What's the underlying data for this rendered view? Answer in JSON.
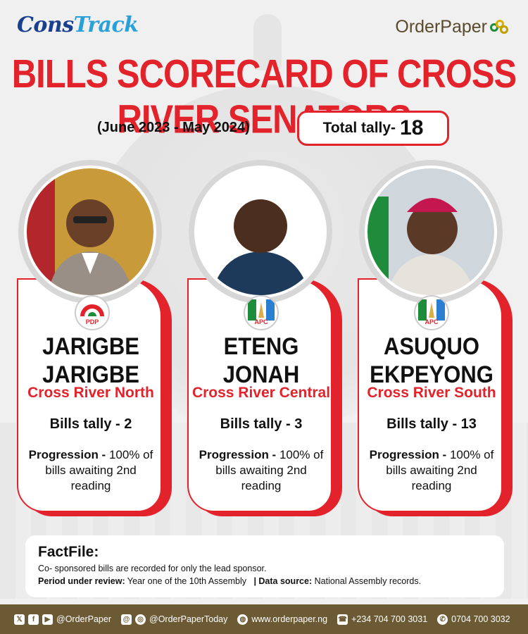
{
  "header": {
    "logo_left_a": "Cons",
    "logo_left_b": "Track",
    "logo_right": "OrderPaper",
    "title": "BILLS SCORECARD OF CROSS RIVER SENATORS",
    "period": "(June 2023 - May 2024)",
    "tally_label": "Total tally-",
    "tally_value": "18"
  },
  "colors": {
    "accent": "#e3232b",
    "brand_brown": "#6b5a34",
    "brand_blue": "#1b3f8f"
  },
  "senators": [
    {
      "name_line1": "JARIGBE",
      "name_line2": "JARIGBE",
      "party": "PDP",
      "region": "Cross River North",
      "bills": "Bills tally - 2",
      "prog_label": "Progression -",
      "prog_line1": "100% of",
      "prog_line2": "bills awaiting 2nd",
      "prog_line3": "reading"
    },
    {
      "name_line1": "ETENG",
      "name_line2": "JONAH",
      "party": "APC",
      "region": "Cross River Central",
      "bills": "Bills tally - 3",
      "prog_label": "Progression -",
      "prog_line1": "100% of",
      "prog_line2": "bills awaiting 2nd",
      "prog_line3": "reading"
    },
    {
      "name_line1": "ASUQUO",
      "name_line2": "EKPEYONG",
      "party": "APC",
      "region": "Cross River South",
      "bills": "Bills tally - 13",
      "prog_label": "Progression -",
      "prog_line1": "100% of",
      "prog_line2": "bills awaiting 2nd",
      "prog_line3": "reading"
    }
  ],
  "factfile": {
    "title": "FactFile:",
    "line1": "Co- sponsored bills are recorded for only the lead sponsor.",
    "period_label": "Period under review:",
    "period_value": "Year one of the 10th Assembly",
    "source_label": "| Data source:",
    "source_value": "National Assembly records."
  },
  "footer": {
    "handle1": "@OrderPaper",
    "handle2": "@OrderPaperToday",
    "website": "www.orderpaper.ng",
    "phone1": "+234 704 700 3031",
    "phone2": "0704 700 3032"
  }
}
